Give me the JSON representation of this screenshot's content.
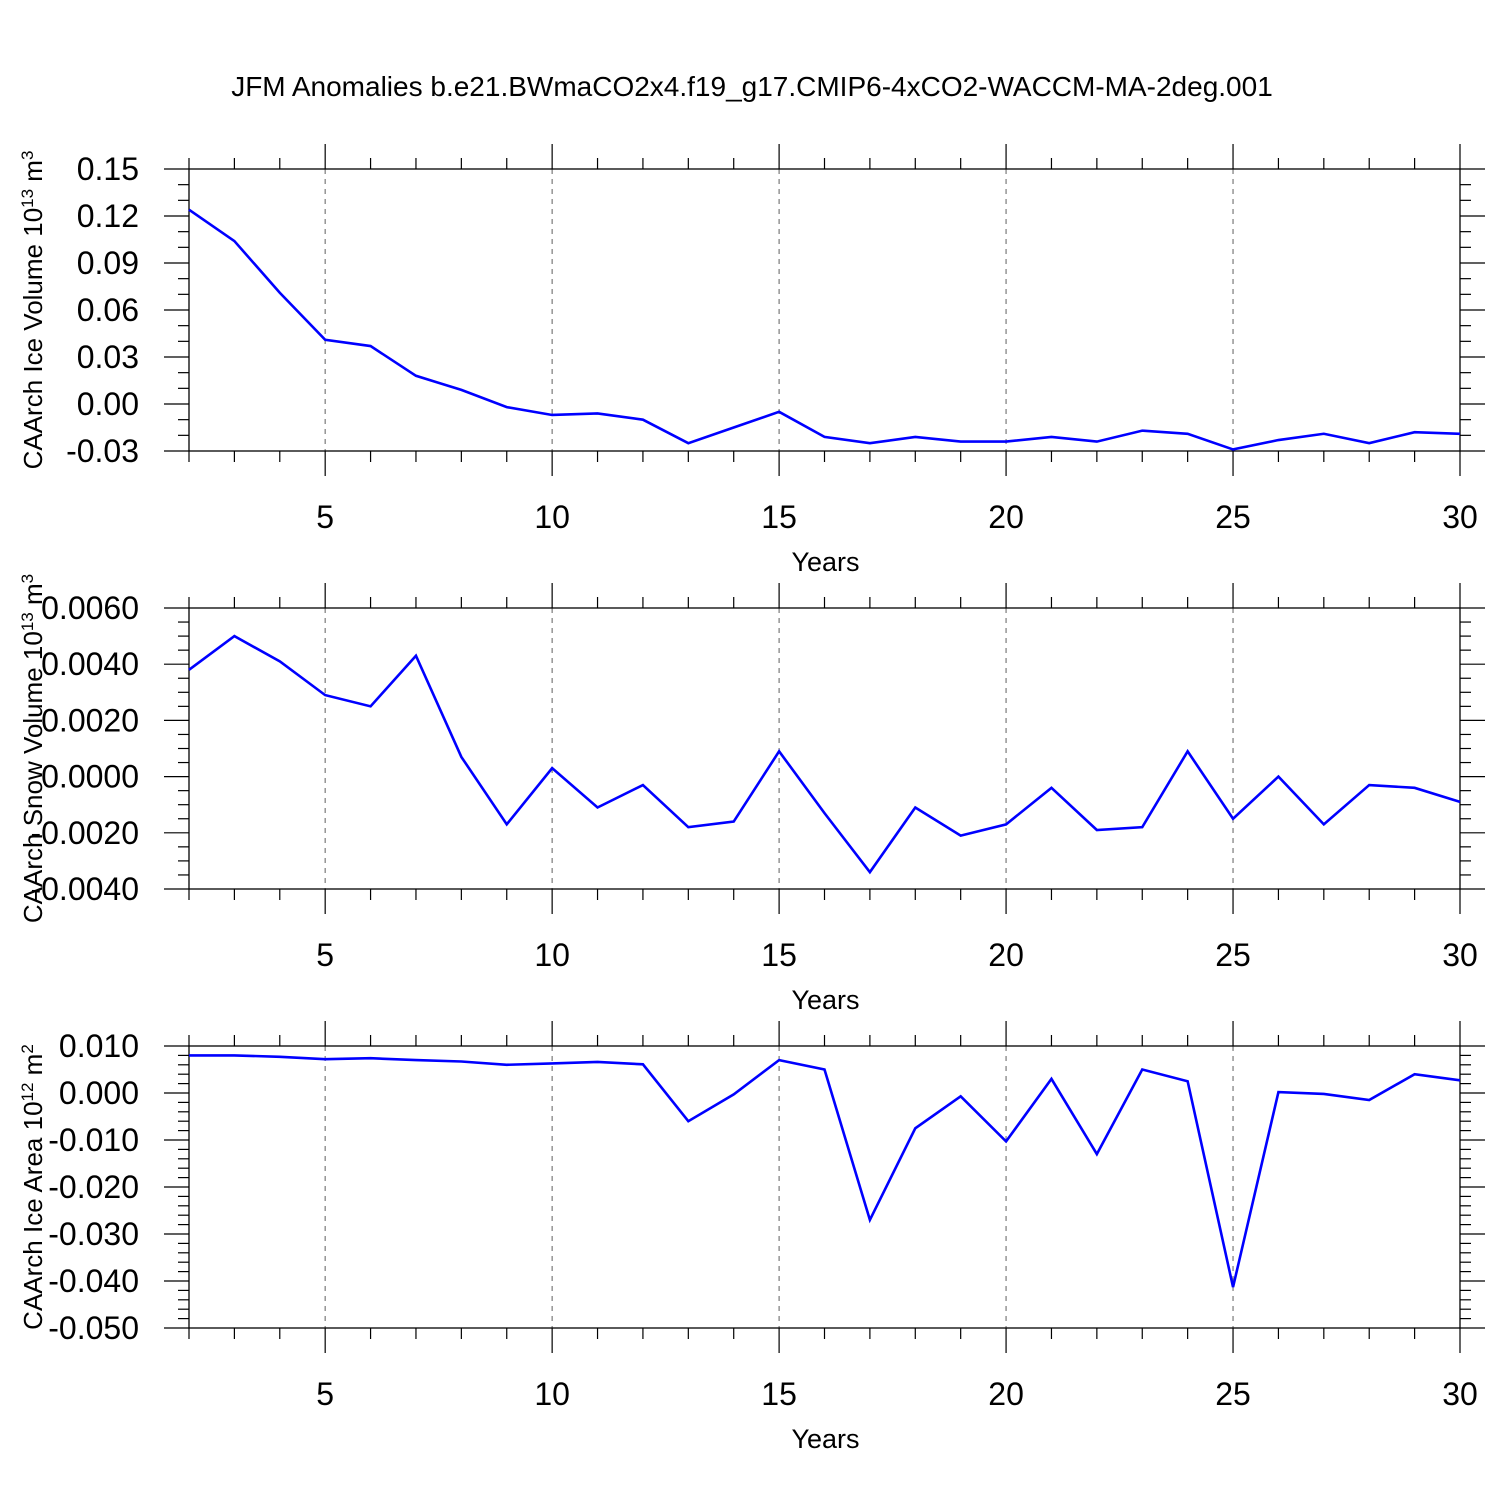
{
  "title": "JFM Anomalies b.e21.BWmaCO2x4.f19_g17.CMIP6-4xCO2-WACCM-MA-2deg.001",
  "colors": {
    "series": "#0000ff",
    "grid": "#7a7a7a",
    "axis": "#000000"
  },
  "chart_data": [
    {
      "type": "line",
      "ylabel": "CAArch Ice Volume 10",
      "ylabel_exp": "13",
      "ylabel_unit": " m",
      "ylabel_unit_exp": "3",
      "xlabel": "Years",
      "xlim": [
        2,
        30
      ],
      "ylim": [
        -0.03,
        0.15
      ],
      "xticks": [
        "5",
        "10",
        "15",
        "20",
        "25",
        "30"
      ],
      "yticks": [
        "0.15",
        "0.12",
        "0.09",
        "0.06",
        "0.03",
        "0.00",
        "-0.03"
      ],
      "x": [
        2,
        3,
        4,
        5,
        6,
        7,
        8,
        9,
        10,
        11,
        12,
        13,
        14,
        15,
        16,
        17,
        18,
        19,
        20,
        21,
        22,
        23,
        24,
        25,
        26,
        27,
        28,
        29,
        30
      ],
      "series": [
        {
          "values": [
            0.124,
            0.104,
            0.071,
            0.041,
            0.037,
            0.018,
            0.009,
            -0.002,
            -0.007,
            -0.006,
            -0.01,
            -0.025,
            -0.015,
            -0.005,
            -0.021,
            -0.025,
            -0.021,
            -0.024,
            -0.024,
            -0.021,
            -0.024,
            -0.017,
            -0.019,
            -0.029,
            -0.023,
            -0.019,
            -0.025,
            -0.018,
            -0.019
          ]
        }
      ]
    },
    {
      "type": "line",
      "ylabel": "CAArch Snow Volume 10",
      "ylabel_exp": "13",
      "ylabel_unit": " m",
      "ylabel_unit_exp": "3",
      "xlabel": "Years",
      "xlim": [
        2,
        30
      ],
      "ylim": [
        -0.004,
        0.006
      ],
      "xticks": [
        "5",
        "10",
        "15",
        "20",
        "25",
        "30"
      ],
      "yticks": [
        "0.0060",
        "0.0040",
        "0.0020",
        "0.0000",
        "-0.0020",
        "-0.0040"
      ],
      "x": [
        2,
        3,
        4,
        5,
        6,
        7,
        8,
        9,
        10,
        11,
        12,
        13,
        14,
        15,
        16,
        17,
        18,
        19,
        20,
        21,
        22,
        23,
        24,
        25,
        26,
        27,
        28,
        29,
        30
      ],
      "series": [
        {
          "values": [
            0.0038,
            0.005,
            0.0041,
            0.0029,
            0.0025,
            0.0043,
            0.0007,
            -0.0017,
            0.0003,
            -0.0011,
            -0.0003,
            -0.0018,
            -0.0016,
            0.0009,
            -0.0013,
            -0.0034,
            -0.0011,
            -0.0021,
            -0.0017,
            -0.0004,
            -0.0019,
            -0.0018,
            0.0009,
            -0.0015,
            0.0,
            -0.0017,
            -0.0003,
            -0.0004,
            -0.0009
          ]
        }
      ]
    },
    {
      "type": "line",
      "ylabel": "CAArch Ice Area 10",
      "ylabel_exp": "12",
      "ylabel_unit": " m",
      "ylabel_unit_exp": "2",
      "xlabel": "Years",
      "xlim": [
        2,
        30
      ],
      "ylim": [
        -0.05,
        0.01
      ],
      "xticks": [
        "5",
        "10",
        "15",
        "20",
        "25",
        "30"
      ],
      "yticks": [
        "0.010",
        "0.000",
        "-0.010",
        "-0.020",
        "-0.030",
        "-0.040",
        "-0.050"
      ],
      "x": [
        2,
        3,
        4,
        5,
        6,
        7,
        8,
        9,
        10,
        11,
        12,
        13,
        14,
        15,
        16,
        17,
        18,
        19,
        20,
        21,
        22,
        23,
        24,
        25,
        26,
        27,
        28,
        29,
        30
      ],
      "series": [
        {
          "values": [
            0.008,
            0.008,
            0.0077,
            0.0072,
            0.0074,
            0.007,
            0.0067,
            0.006,
            0.0063,
            0.0066,
            0.0061,
            -0.006,
            -0.0003,
            0.007,
            0.005,
            -0.027,
            -0.0075,
            -0.0007,
            -0.0103,
            0.003,
            -0.013,
            0.005,
            0.0025,
            -0.0413,
            0.0002,
            -0.0002,
            -0.0015,
            0.004,
            0.0027
          ]
        }
      ]
    }
  ]
}
